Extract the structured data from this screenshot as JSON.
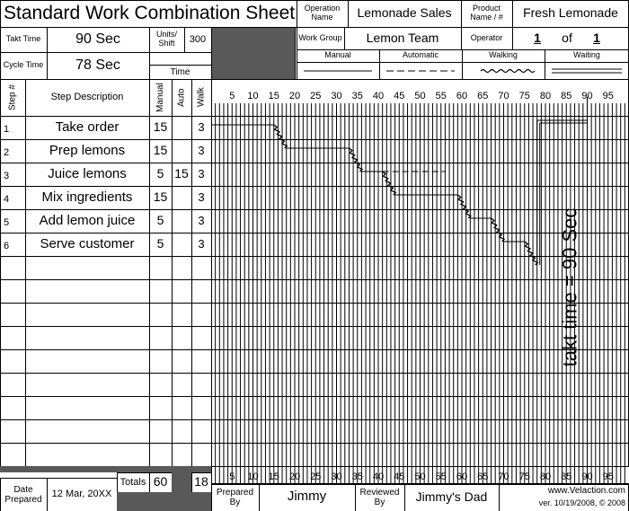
{
  "header": {
    "title": "Standard Work Combination Sheet",
    "operation_name_label": "Operation Name",
    "operation_name": "Lemonade Sales",
    "product_label": "Product Name / #",
    "product": "Fresh Lemonade",
    "takt_time_label": "Takt Time",
    "takt_time": "90 Sec",
    "units_label": "Units/ Shift",
    "units": 300,
    "work_group_label": "Work Group",
    "work_group": "Lemon Team",
    "operator_label": "Operator",
    "operator": 1,
    "operator_of": "of",
    "operator_total": 1,
    "cycle_time_label": "Cycle Time",
    "cycle_time": "78 Sec",
    "time_label": "Time"
  },
  "legend": {
    "manual": "Manual",
    "automatic": "Automatic",
    "walking": "Walking",
    "waiting": "Waiting"
  },
  "table": {
    "columns": [
      "Step #",
      "Step Description",
      "Manual",
      "Auto",
      "Walk"
    ],
    "time_limit": [
      0,
      100
    ],
    "time_ticks": [
      5,
      10,
      15,
      20,
      25,
      30,
      35,
      40,
      45,
      50,
      55,
      60,
      65,
      70,
      75,
      80,
      85,
      90,
      95
    ],
    "rows": [
      {
        "step": 1,
        "description": "Take order",
        "manual": 15,
        "auto": null,
        "walk": 3
      },
      {
        "step": 2,
        "description": "Prep lemons",
        "manual": 15,
        "auto": null,
        "walk": 3
      },
      {
        "step": 3,
        "description": "Juice lemons",
        "manual": 5,
        "auto": 15,
        "walk": 3
      },
      {
        "step": 4,
        "description": "Mix ingredients",
        "manual": 15,
        "auto": null,
        "walk": 3
      },
      {
        "step": 5,
        "description": "Add lemon juice",
        "manual": 5,
        "auto": null,
        "walk": 3
      },
      {
        "step": 6,
        "description": "Serve customer",
        "manual": 5,
        "auto": null,
        "walk": 3
      }
    ],
    "totals_label": "Totals",
    "total_manual": 60,
    "total_walk": 18
  },
  "takt": {
    "value": 90,
    "label": "takt time = 90 Sec"
  },
  "footer": {
    "date_label": "Date Prepared",
    "date": "12 Mar, 20XX",
    "prepared_label": "Prepared By",
    "prepared": "Jimmy",
    "reviewed_label": "Reviewed By",
    "reviewed": "Jimmy's Dad",
    "website": "www.Velaction.com",
    "version": "ver. 10/19/2008, © 2008"
  }
}
